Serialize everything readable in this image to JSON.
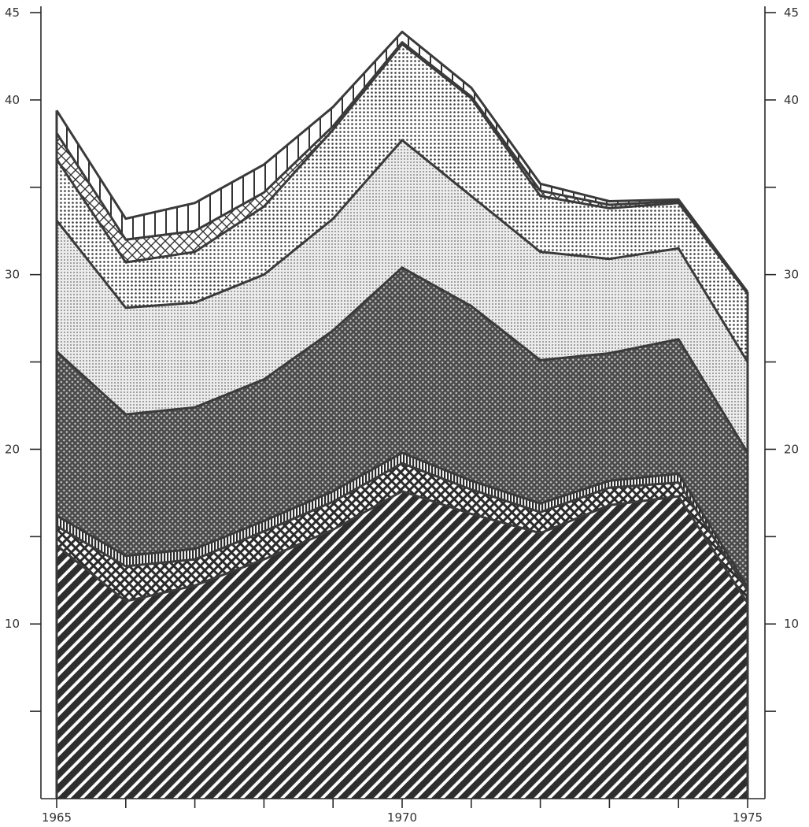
{
  "chart_data": {
    "type": "area",
    "stacked": true,
    "title": "",
    "xlabel": "",
    "ylabel": "",
    "x": [
      1965,
      1966,
      1967,
      1968,
      1969,
      1970,
      1971,
      1972,
      1973,
      1974,
      1975
    ],
    "xlim": [
      1965,
      1975
    ],
    "ylim": [
      0,
      45
    ],
    "x_ticks": [
      1965,
      1966,
      1967,
      1968,
      1969,
      1970,
      1971,
      1972,
      1973,
      1974,
      1975
    ],
    "x_tick_labels": [
      "1965",
      "",
      "",
      "",
      "",
      "1970",
      "",
      "",
      "",
      "",
      "1975"
    ],
    "y_ticks": [
      5,
      10,
      15,
      20,
      25,
      30,
      35,
      40,
      45
    ],
    "y_tick_labels": [
      "",
      "10",
      "",
      "20",
      "",
      "30",
      "",
      "40",
      "45"
    ],
    "grid": false,
    "legend": "none",
    "series": [
      {
        "values": [
          14.5,
          11.3,
          12.2,
          13.7,
          15.4,
          17.6,
          16.3,
          15.2,
          16.8,
          17.3,
          11.2
        ],
        "pattern": "diagonal-hatch"
      },
      {
        "values": [
          1.1,
          2.0,
          1.5,
          1.6,
          1.6,
          1.6,
          1.4,
          1.2,
          1.0,
          0.8,
          0.7
        ],
        "pattern": "checker"
      },
      {
        "values": [
          0.6,
          0.6,
          0.6,
          0.6,
          0.6,
          0.6,
          0.5,
          0.5,
          0.4,
          0.5,
          0.2
        ],
        "pattern": "vertical-lines"
      },
      {
        "values": [
          9.4,
          8.1,
          8.1,
          8.1,
          9.2,
          10.6,
          10.0,
          8.2,
          7.3,
          7.7,
          7.7
        ],
        "pattern": "dense-crosshatch"
      },
      {
        "values": [
          7.5,
          6.1,
          6.0,
          6.0,
          6.4,
          7.3,
          6.3,
          6.2,
          5.4,
          5.2,
          5.2
        ],
        "pattern": "fine-dots"
      },
      {
        "values": [
          3.5,
          2.6,
          2.9,
          3.9,
          5.1,
          5.5,
          5.6,
          3.2,
          2.9,
          2.6,
          3.9
        ],
        "pattern": "medium-dots"
      },
      {
        "values": [
          1.5,
          1.3,
          1.2,
          0.8,
          0.2,
          0.1,
          0.1,
          0.3,
          0.2,
          0.1,
          0.1
        ],
        "pattern": "crosshatch"
      },
      {
        "values": [
          1.3,
          1.2,
          1.6,
          1.6,
          1.1,
          0.6,
          0.5,
          0.4,
          0.2,
          0.1,
          0.0
        ],
        "pattern": "vertical-bars"
      }
    ]
  },
  "colors": {
    "background": "#ffffff",
    "ink": "#2a2a2a",
    "line": "#3a3a3a"
  }
}
